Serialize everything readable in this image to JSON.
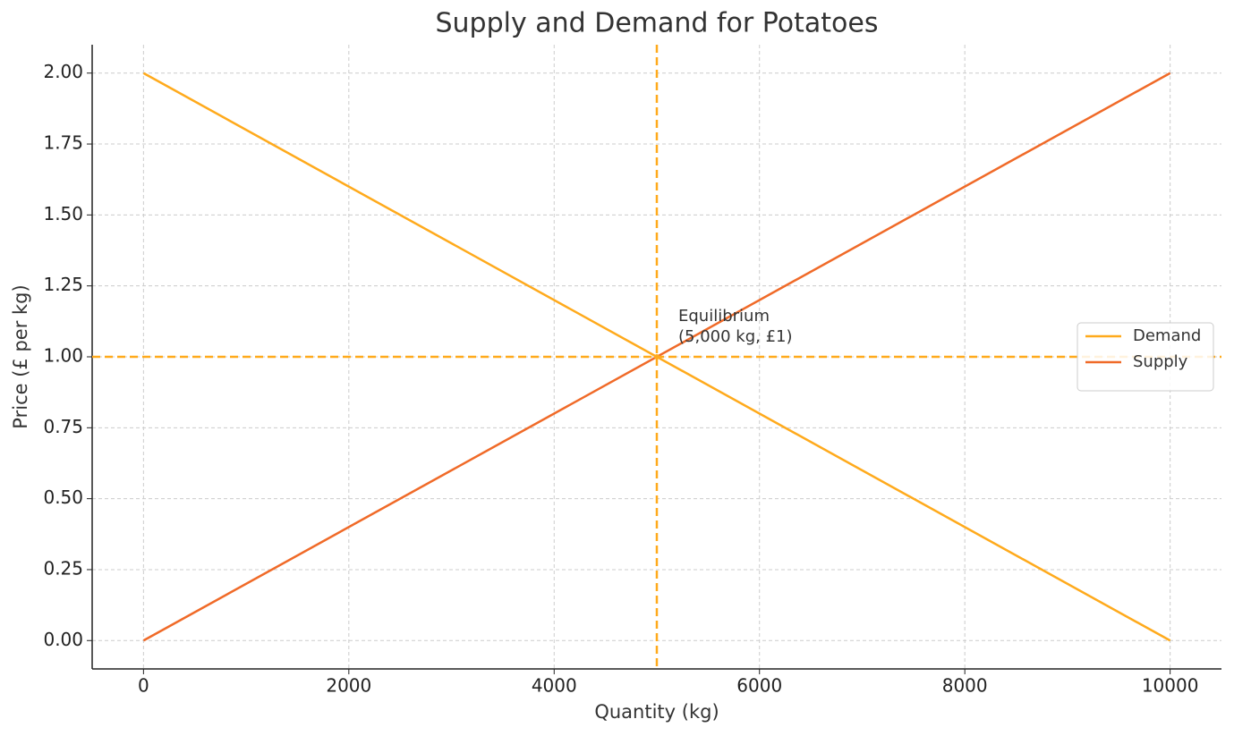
{
  "chart_data": {
    "type": "line",
    "title": "Supply and Demand for Potatoes",
    "xlabel": "Quantity (kg)",
    "ylabel": "Price (£ per kg)",
    "x": [
      0,
      10000
    ],
    "series": [
      {
        "name": "Demand",
        "color": "#ffaa1c",
        "values": [
          2,
          0
        ]
      },
      {
        "name": "Supply",
        "color": "#f06a28",
        "values": [
          0,
          2
        ]
      }
    ],
    "reference_lines": [
      {
        "orientation": "vertical",
        "value": 5000
      },
      {
        "orientation": "horizontal",
        "value": 1
      }
    ],
    "reference_color": "#ffaa1c",
    "annotation": {
      "x": 5000,
      "y": 1,
      "lines": [
        "Equilibrium",
        "(5,000 kg, £1)"
      ]
    },
    "xlim": [
      -500,
      10500
    ],
    "ylim": [
      -0.1,
      2.1
    ],
    "xticks": [
      0,
      2000,
      4000,
      6000,
      8000,
      10000
    ],
    "yticks": [
      {
        "value": 0,
        "label": "0.00"
      },
      {
        "value": 0.25,
        "label": "0.25"
      },
      {
        "value": 0.5,
        "label": "0.50"
      },
      {
        "value": 0.75,
        "label": "0.75"
      },
      {
        "value": 1,
        "label": "1.00"
      },
      {
        "value": 1.25,
        "label": "1.25"
      },
      {
        "value": 1.5,
        "label": "1.50"
      },
      {
        "value": 1.75,
        "label": "1.75"
      },
      {
        "value": 2,
        "label": "2.00"
      }
    ],
    "grid": true,
    "legend_position": "center right"
  }
}
